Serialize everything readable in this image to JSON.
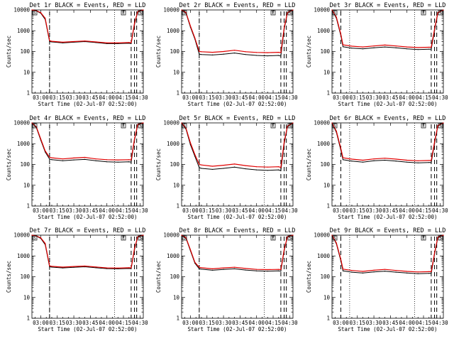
{
  "figure": {
    "common": {
      "ylabel": "Counts/sec",
      "xlabel": "Start Time (02-Jul-07 02:52:00)",
      "xticks": [
        "03:00",
        "03:15",
        "03:30",
        "03:45",
        "04:00",
        "04:15",
        "04:30"
      ],
      "yticks": [
        "1",
        "10",
        "100",
        "1000",
        "10000"
      ],
      "legend_black": "Events",
      "legend_red": "LLD",
      "marker_left": "S",
      "marker_mid": "E",
      "marker_right": "S"
    },
    "colors": {
      "events": "#000000",
      "lld": "#e00000"
    }
  },
  "chart_data": [
    {
      "type": "line",
      "title": "Det 1r BLACK = Events, RED = LLD",
      "y_log": true,
      "ylim": [
        1,
        10000
      ],
      "xlim": [
        "02:52",
        "04:33"
      ],
      "marker_time": "04:15",
      "dashed_times": [
        "03:08",
        "04:22",
        "04:25",
        "04:27"
      ],
      "dotted_times": [
        "03:08",
        "04:07"
      ],
      "series": [
        {
          "name": "Events",
          "x": [
            "02:52",
            "02:56",
            "03:00",
            "03:04",
            "03:08",
            "03:10",
            "03:20",
            "03:30",
            "03:40",
            "03:50",
            "04:00",
            "04:10",
            "04:20",
            "04:22",
            "04:25",
            "04:28",
            "04:33"
          ],
          "y": [
            10000,
            9000,
            7000,
            3500,
            300,
            290,
            260,
            280,
            300,
            270,
            240,
            240,
            250,
            240,
            2000,
            8000,
            10000
          ]
        },
        {
          "name": "LLD",
          "x": [
            "02:52",
            "02:56",
            "03:00",
            "03:04",
            "03:08",
            "03:10",
            "03:20",
            "03:30",
            "03:40",
            "03:50",
            "04:00",
            "04:10",
            "04:20",
            "04:22",
            "04:25",
            "04:28",
            "04:33"
          ],
          "y": [
            10000,
            9200,
            7500,
            4000,
            330,
            310,
            280,
            300,
            320,
            290,
            260,
            260,
            270,
            265,
            2300,
            8500,
            10000
          ]
        }
      ]
    },
    {
      "type": "line",
      "title": "Det 2r BLACK = Events, RED = LLD",
      "y_log": true,
      "ylim": [
        1,
        10000
      ],
      "xlim": [
        "02:52",
        "04:33"
      ],
      "marker_time": "04:15",
      "dashed_times": [
        "03:08",
        "04:22",
        "04:25",
        "04:27"
      ],
      "dotted_times": [
        "03:08",
        "04:07"
      ],
      "series": [
        {
          "name": "Events",
          "x": [
            "02:52",
            "02:56",
            "03:00",
            "03:04",
            "03:08",
            "03:10",
            "03:20",
            "03:30",
            "03:40",
            "03:50",
            "04:00",
            "04:10",
            "04:20",
            "04:22",
            "04:25",
            "04:28",
            "04:33"
          ],
          "y": [
            10000,
            7000,
            1500,
            400,
            75,
            72,
            68,
            75,
            85,
            72,
            65,
            62,
            65,
            60,
            1200,
            7000,
            10000
          ]
        },
        {
          "name": "LLD",
          "x": [
            "02:52",
            "02:56",
            "03:00",
            "03:04",
            "03:08",
            "03:10",
            "03:20",
            "03:30",
            "03:40",
            "03:50",
            "04:00",
            "04:10",
            "04:20",
            "04:22",
            "04:25",
            "04:28",
            "04:33"
          ],
          "y": [
            10000,
            7500,
            1700,
            450,
            100,
            98,
            92,
            100,
            115,
            98,
            90,
            88,
            92,
            88,
            1400,
            7500,
            10000
          ]
        }
      ]
    },
    {
      "type": "line",
      "title": "Det 3r BLACK = Events, RED = LLD",
      "y_log": true,
      "ylim": [
        1,
        10000
      ],
      "xlim": [
        "02:52",
        "04:33"
      ],
      "marker_time": "04:15",
      "dashed_times": [
        "03:00",
        "04:22",
        "04:25",
        "04:27"
      ],
      "dotted_times": [
        "03:08",
        "04:07"
      ],
      "series": [
        {
          "name": "Events",
          "x": [
            "02:52",
            "02:56",
            "03:00",
            "03:02",
            "03:10",
            "03:20",
            "03:30",
            "03:40",
            "03:50",
            "04:00",
            "04:10",
            "04:20",
            "04:22",
            "04:25",
            "04:28",
            "04:33"
          ],
          "y": [
            10000,
            4000,
            600,
            170,
            145,
            135,
            150,
            165,
            150,
            135,
            125,
            130,
            130,
            1000,
            7000,
            10000
          ]
        },
        {
          "name": "LLD",
          "x": [
            "02:52",
            "02:56",
            "03:00",
            "03:02",
            "03:10",
            "03:20",
            "03:30",
            "03:40",
            "03:50",
            "04:00",
            "04:10",
            "04:20",
            "04:22",
            "04:25",
            "04:28",
            "04:33"
          ],
          "y": [
            10000,
            4500,
            700,
            210,
            180,
            165,
            185,
            205,
            185,
            165,
            155,
            160,
            160,
            1200,
            7500,
            10000
          ]
        }
      ]
    },
    {
      "type": "line",
      "title": "Det 4r BLACK = Events, RED = LLD",
      "y_log": true,
      "ylim": [
        1,
        10000
      ],
      "xlim": [
        "02:52",
        "04:33"
      ],
      "marker_time": "04:15",
      "dashed_times": [
        "03:08",
        "04:22",
        "04:25",
        "04:27"
      ],
      "dotted_times": [
        "03:08",
        "04:07"
      ],
      "series": [
        {
          "name": "Events",
          "x": [
            "02:52",
            "02:56",
            "03:00",
            "03:04",
            "03:08",
            "03:10",
            "03:20",
            "03:30",
            "03:40",
            "03:50",
            "04:00",
            "04:10",
            "04:20",
            "04:22",
            "04:25",
            "04:28",
            "04:33"
          ],
          "y": [
            10000,
            6000,
            1500,
            400,
            180,
            170,
            150,
            165,
            175,
            150,
            135,
            130,
            135,
            130,
            1500,
            8000,
            10000
          ]
        },
        {
          "name": "LLD",
          "x": [
            "02:52",
            "02:56",
            "03:00",
            "03:04",
            "03:08",
            "03:10",
            "03:20",
            "03:30",
            "03:40",
            "03:50",
            "04:00",
            "04:10",
            "04:20",
            "04:22",
            "04:25",
            "04:28",
            "04:33"
          ],
          "y": [
            10000,
            6500,
            1700,
            450,
            220,
            210,
            185,
            205,
            220,
            185,
            170,
            165,
            170,
            165,
            1700,
            8500,
            10000
          ]
        }
      ]
    },
    {
      "type": "line",
      "title": "Det 5r BLACK = Events, RED = LLD",
      "y_log": true,
      "ylim": [
        1,
        10000
      ],
      "xlim": [
        "02:52",
        "04:33"
      ],
      "marker_time": "04:15",
      "dashed_times": [
        "03:08",
        "04:22",
        "04:25",
        "04:27"
      ],
      "dotted_times": [
        "03:08",
        "04:07"
      ],
      "series": [
        {
          "name": "Events",
          "x": [
            "02:52",
            "02:56",
            "03:00",
            "03:04",
            "03:08",
            "03:10",
            "03:20",
            "03:30",
            "03:40",
            "03:50",
            "04:00",
            "04:10",
            "04:20",
            "04:22",
            "04:25",
            "04:28",
            "04:33"
          ],
          "y": [
            10000,
            5000,
            900,
            250,
            70,
            65,
            58,
            65,
            75,
            62,
            55,
            52,
            55,
            50,
            1000,
            6500,
            10000
          ]
        },
        {
          "name": "LLD",
          "x": [
            "02:52",
            "02:56",
            "03:00",
            "03:04",
            "03:08",
            "03:10",
            "03:20",
            "03:30",
            "03:40",
            "03:50",
            "04:00",
            "04:10",
            "04:20",
            "04:22",
            "04:25",
            "04:28",
            "04:33"
          ],
          "y": [
            10000,
            5500,
            1100,
            300,
            100,
            95,
            82,
            92,
            105,
            88,
            78,
            75,
            78,
            72,
            1200,
            7000,
            10000
          ]
        }
      ]
    },
    {
      "type": "line",
      "title": "Det 6r BLACK = Events, RED = LLD",
      "y_log": true,
      "ylim": [
        1,
        10000
      ],
      "xlim": [
        "02:52",
        "04:33"
      ],
      "marker_time": "04:15",
      "dashed_times": [
        "03:00",
        "04:22",
        "04:25",
        "04:27"
      ],
      "dotted_times": [
        "03:08",
        "04:07"
      ],
      "series": [
        {
          "name": "Events",
          "x": [
            "02:52",
            "02:56",
            "03:00",
            "03:02",
            "03:10",
            "03:20",
            "03:30",
            "03:40",
            "03:50",
            "04:00",
            "04:10",
            "04:20",
            "04:22",
            "04:25",
            "04:28",
            "04:33"
          ],
          "y": [
            10000,
            3500,
            500,
            170,
            145,
            130,
            150,
            160,
            145,
            130,
            120,
            125,
            125,
            1000,
            7000,
            10000
          ]
        },
        {
          "name": "LLD",
          "x": [
            "02:52",
            "02:56",
            "03:00",
            "03:02",
            "03:10",
            "03:20",
            "03:30",
            "03:40",
            "03:50",
            "04:00",
            "04:10",
            "04:20",
            "04:22",
            "04:25",
            "04:28",
            "04:33"
          ],
          "y": [
            10000,
            4000,
            600,
            210,
            180,
            160,
            185,
            200,
            180,
            160,
            150,
            155,
            155,
            1200,
            7500,
            10000
          ]
        }
      ]
    },
    {
      "type": "line",
      "title": "Det 7r BLACK = Events, RED = LLD",
      "y_log": true,
      "ylim": [
        1,
        10000
      ],
      "xlim": [
        "02:52",
        "04:33"
      ],
      "marker_time": "04:15",
      "dashed_times": [
        "03:08",
        "04:22",
        "04:25",
        "04:27"
      ],
      "dotted_times": [
        "03:08",
        "04:07"
      ],
      "series": [
        {
          "name": "Events",
          "x": [
            "02:52",
            "02:56",
            "03:00",
            "03:04",
            "03:08",
            "03:10",
            "03:20",
            "03:30",
            "03:40",
            "03:50",
            "04:00",
            "04:10",
            "04:20",
            "04:22",
            "04:25",
            "04:28",
            "04:33"
          ],
          "y": [
            10000,
            9000,
            7000,
            3500,
            300,
            290,
            265,
            285,
            300,
            270,
            245,
            240,
            250,
            245,
            2000,
            8000,
            10000
          ]
        },
        {
          "name": "LLD",
          "x": [
            "02:52",
            "02:56",
            "03:00",
            "03:04",
            "03:08",
            "03:10",
            "03:20",
            "03:30",
            "03:40",
            "03:50",
            "04:00",
            "04:10",
            "04:20",
            "04:22",
            "04:25",
            "04:28",
            "04:33"
          ],
          "y": [
            10000,
            9200,
            7500,
            4000,
            330,
            315,
            290,
            310,
            325,
            295,
            265,
            260,
            270,
            265,
            2300,
            8500,
            10000
          ]
        }
      ]
    },
    {
      "type": "line",
      "title": "Det 8r BLACK = Events, RED = LLD",
      "y_log": true,
      "ylim": [
        1,
        10000
      ],
      "xlim": [
        "02:52",
        "04:33"
      ],
      "marker_time": "04:15",
      "dashed_times": [
        "03:08",
        "04:22",
        "04:25",
        "04:27"
      ],
      "dotted_times": [
        "03:08",
        "04:07"
      ],
      "series": [
        {
          "name": "Events",
          "x": [
            "02:52",
            "02:56",
            "03:00",
            "03:04",
            "03:08",
            "03:10",
            "03:20",
            "03:30",
            "03:40",
            "03:50",
            "04:00",
            "04:10",
            "04:20",
            "04:22",
            "04:25",
            "04:28",
            "04:33"
          ],
          "y": [
            10000,
            7000,
            1800,
            450,
            240,
            230,
            205,
            225,
            240,
            210,
            190,
            185,
            190,
            185,
            1800,
            8000,
            10000
          ]
        },
        {
          "name": "LLD",
          "x": [
            "02:52",
            "02:56",
            "03:00",
            "03:04",
            "03:08",
            "03:10",
            "03:20",
            "03:30",
            "03:40",
            "03:50",
            "04:00",
            "04:10",
            "04:20",
            "04:22",
            "04:25",
            "04:28",
            "04:33"
          ],
          "y": [
            10000,
            7500,
            2000,
            500,
            280,
            270,
            240,
            265,
            285,
            250,
            225,
            220,
            225,
            220,
            2000,
            8500,
            10000
          ]
        }
      ]
    },
    {
      "type": "line",
      "title": "Det 9r BLACK = Events, RED = LLD",
      "y_log": true,
      "ylim": [
        1,
        10000
      ],
      "xlim": [
        "02:52",
        "04:33"
      ],
      "marker_time": "04:15",
      "dashed_times": [
        "03:00",
        "04:22",
        "04:25",
        "04:27"
      ],
      "dotted_times": [
        "03:08",
        "04:07"
      ],
      "series": [
        {
          "name": "Events",
          "x": [
            "02:52",
            "02:56",
            "03:00",
            "03:02",
            "03:10",
            "03:20",
            "03:30",
            "03:40",
            "03:50",
            "04:00",
            "04:10",
            "04:20",
            "04:22",
            "04:25",
            "04:28",
            "04:33"
          ],
          "y": [
            10000,
            3800,
            600,
            190,
            165,
            150,
            170,
            185,
            165,
            150,
            140,
            145,
            145,
            1200,
            7500,
            10000
          ]
        },
        {
          "name": "LLD",
          "x": [
            "02:52",
            "02:56",
            "03:00",
            "03:02",
            "03:10",
            "03:20",
            "03:30",
            "03:40",
            "03:50",
            "04:00",
            "04:10",
            "04:20",
            "04:22",
            "04:25",
            "04:28",
            "04:33"
          ],
          "y": [
            10000,
            4200,
            700,
            230,
            200,
            180,
            205,
            225,
            200,
            180,
            170,
            175,
            175,
            1400,
            8000,
            10000
          ]
        }
      ]
    }
  ]
}
